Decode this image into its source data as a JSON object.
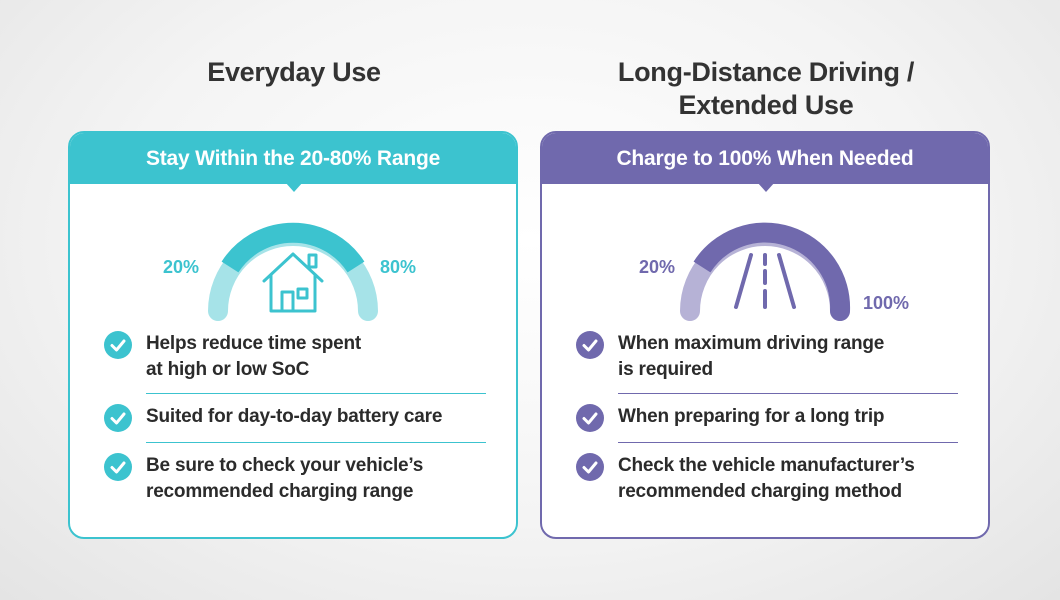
{
  "left": {
    "title": "Everyday Use",
    "header": "Stay Within the 20-80% Range",
    "gauge": {
      "low_label": "20%",
      "high_label": "80%",
      "icon": "house-icon"
    },
    "items": [
      {
        "line1": "Helps reduce time spent",
        "line2": "at high or low SoC"
      },
      {
        "line1": "Suited for day-to-day battery care",
        "line2": ""
      },
      {
        "line1": "Be sure to check your vehicle’s",
        "line2": "recommended charging range"
      }
    ],
    "color": "#3cc3cf"
  },
  "right": {
    "title_line1": "Long-Distance Driving /",
    "title_line2": "Extended Use",
    "header": "Charge to 100% When Needed",
    "gauge": {
      "low_label": "20%",
      "high_label": "100%",
      "icon": "road-icon"
    },
    "items": [
      {
        "line1": "When maximum driving range",
        "line2": "is required"
      },
      {
        "line1": "When preparing for a long trip",
        "line2": ""
      },
      {
        "line1": "Check the vehicle manufacturer’s",
        "line2": "recommended charging method"
      }
    ],
    "color": "#7069ad"
  }
}
